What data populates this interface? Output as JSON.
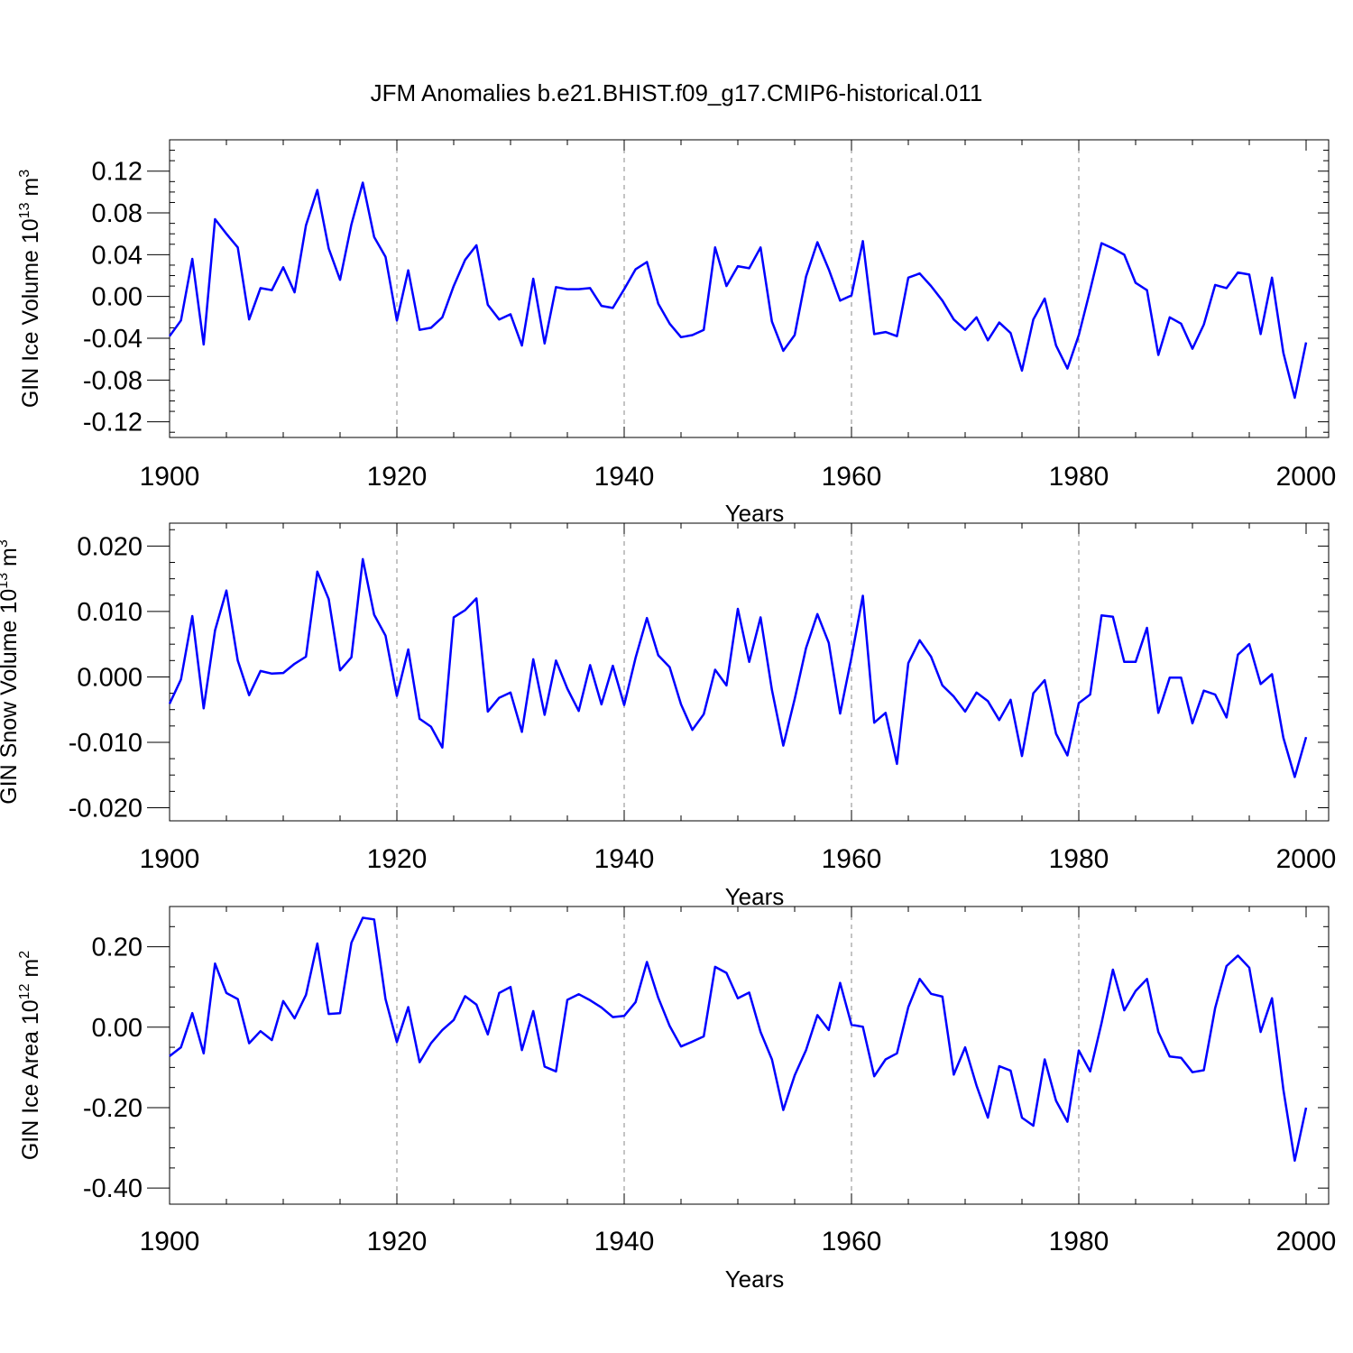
{
  "figure_title": "JFM Anomalies b.e21.BHIST.f09_g17.CMIP6-historical.011",
  "line_color": "#0000ff",
  "chart_data": [
    {
      "type": "line",
      "title": "",
      "xlabel": "Years",
      "ylabel_main": "GIN Ice Volume 10",
      "ylabel_exp": "13",
      "ylabel_unit": "m",
      "ylabel_unit_exp": "3",
      "xlim": [
        1900,
        2000
      ],
      "ylim": [
        -0.135,
        0.15
      ],
      "x_ticks": [
        1900,
        1920,
        1940,
        1960,
        1980,
        2000
      ],
      "y_ticks": [
        -0.12,
        -0.08,
        -0.04,
        0.0,
        0.04,
        0.08,
        0.12
      ],
      "y_tick_labels": [
        "-0.12",
        "-0.08",
        "-0.04",
        "0.00",
        "0.04",
        "0.08",
        "0.12"
      ],
      "x_start": 1900,
      "series": [
        {
          "values": [
            -0.038,
            -0.023,
            0.036,
            -0.046,
            0.074,
            0.06,
            0.047,
            -0.022,
            0.008,
            0.006,
            0.028,
            0.004,
            0.068,
            0.102,
            0.046,
            0.016,
            0.069,
            0.109,
            0.057,
            0.038,
            -0.023,
            0.025,
            -0.032,
            -0.03,
            -0.02,
            0.01,
            0.035,
            0.049,
            -0.008,
            -0.022,
            -0.017,
            -0.047,
            0.017,
            -0.045,
            0.009,
            0.007,
            0.007,
            0.008,
            -0.009,
            -0.011,
            0.007,
            0.026,
            0.033,
            -0.007,
            -0.026,
            -0.039,
            -0.037,
            -0.032,
            0.047,
            0.01,
            0.029,
            0.027,
            0.047,
            -0.024,
            -0.052,
            -0.037,
            0.019,
            0.052,
            0.026,
            -0.004,
            0.001,
            0.053,
            -0.036,
            -0.034,
            -0.038,
            0.018,
            0.022,
            0.01,
            -0.004,
            -0.022,
            -0.032,
            -0.02,
            -0.042,
            -0.025,
            -0.035,
            -0.071,
            -0.022,
            -0.002,
            -0.047,
            -0.069,
            -0.037,
            0.006,
            0.051,
            0.046,
            0.04,
            0.013,
            0.006,
            -0.056,
            -0.02,
            -0.026,
            -0.05,
            -0.027,
            0.011,
            0.008,
            0.023,
            0.021,
            -0.036,
            0.018,
            -0.054,
            -0.097,
            -0.044
          ]
        }
      ]
    },
    {
      "type": "line",
      "title": "",
      "xlabel": "Years",
      "ylabel_main": "GIN Snow Volume 10",
      "ylabel_exp": "13",
      "ylabel_unit": "m",
      "ylabel_unit_exp": "3",
      "xlim": [
        1900,
        2000
      ],
      "ylim": [
        -0.022,
        0.0235
      ],
      "x_ticks": [
        1900,
        1920,
        1940,
        1960,
        1980,
        2000
      ],
      "y_ticks": [
        -0.02,
        -0.01,
        0.0,
        0.01,
        0.02
      ],
      "y_tick_labels": [
        "-0.020",
        "-0.010",
        "0.000",
        "0.010",
        "0.020"
      ],
      "x_start": 1900,
      "series": [
        {
          "values": [
            -0.0041,
            -0.0004,
            0.0093,
            -0.0048,
            0.0071,
            0.0132,
            0.0025,
            -0.0028,
            0.0009,
            0.0005,
            0.0006,
            0.002,
            0.0031,
            0.0161,
            0.0119,
            0.001,
            0.003,
            0.018,
            0.0095,
            0.0063,
            -0.0029,
            0.0042,
            -0.0064,
            -0.0076,
            -0.0108,
            0.0091,
            0.0102,
            0.012,
            -0.0053,
            -0.0032,
            -0.0024,
            -0.0084,
            0.0027,
            -0.0058,
            0.0025,
            -0.0018,
            -0.0052,
            0.0018,
            -0.0042,
            0.0017,
            -0.0043,
            0.0029,
            0.009,
            0.0033,
            0.0015,
            -0.0042,
            -0.0081,
            -0.0057,
            0.0011,
            -0.0013,
            0.0104,
            0.0023,
            0.0091,
            -0.002,
            -0.0105,
            -0.0034,
            0.0044,
            0.0096,
            0.0052,
            -0.0056,
            0.003,
            0.0124,
            -0.007,
            -0.0055,
            -0.0133,
            0.0021,
            0.0056,
            0.0031,
            -0.0013,
            -0.003,
            -0.0053,
            -0.0024,
            -0.0037,
            -0.0066,
            -0.0035,
            -0.0121,
            -0.0025,
            -0.0005,
            -0.0087,
            -0.012,
            -0.004,
            -0.0027,
            0.0094,
            0.0092,
            0.0023,
            0.0023,
            0.0075,
            -0.0055,
            -0.0001,
            -0.0001,
            -0.0071,
            -0.0021,
            -0.0027,
            -0.0062,
            0.0034,
            0.005,
            -0.0011,
            0.0004,
            -0.0093,
            -0.0153,
            -0.0092
          ]
        }
      ]
    },
    {
      "type": "line",
      "title": "",
      "xlabel": "Years",
      "ylabel_main": "GIN Ice Area 10",
      "ylabel_exp": "12",
      "ylabel_unit": "m",
      "ylabel_unit_exp": "2",
      "xlim": [
        1900,
        2000
      ],
      "ylim": [
        -0.44,
        0.3
      ],
      "x_ticks": [
        1900,
        1920,
        1940,
        1960,
        1980,
        2000
      ],
      "y_ticks": [
        -0.4,
        -0.2,
        0.0,
        0.2
      ],
      "y_tick_labels": [
        "-0.40",
        "-0.20",
        "0.00",
        "0.20"
      ],
      "x_start": 1900,
      "series": [
        {
          "values": [
            -0.072,
            -0.05,
            0.035,
            -0.065,
            0.158,
            0.085,
            0.07,
            -0.04,
            -0.01,
            -0.032,
            0.065,
            0.022,
            0.08,
            0.208,
            0.033,
            0.035,
            0.21,
            0.272,
            0.268,
            0.07,
            -0.037,
            0.05,
            -0.087,
            -0.04,
            -0.007,
            0.018,
            0.077,
            0.056,
            -0.018,
            0.085,
            0.1,
            -0.057,
            0.04,
            -0.098,
            -0.11,
            0.068,
            0.082,
            0.067,
            0.049,
            0.025,
            0.028,
            0.062,
            0.162,
            0.073,
            0.003,
            -0.048,
            -0.036,
            -0.023,
            0.15,
            0.135,
            0.072,
            0.086,
            -0.012,
            -0.08,
            -0.206,
            -0.12,
            -0.057,
            0.03,
            -0.007,
            0.11,
            0.006,
            0.001,
            -0.122,
            -0.08,
            -0.065,
            0.05,
            0.12,
            0.083,
            0.076,
            -0.118,
            -0.05,
            -0.145,
            -0.225,
            -0.097,
            -0.108,
            -0.225,
            -0.245,
            -0.08,
            -0.183,
            -0.235,
            -0.058,
            -0.11,
            0.01,
            0.143,
            0.042,
            0.09,
            0.12,
            -0.012,
            -0.073,
            -0.076,
            -0.112,
            -0.107,
            0.048,
            0.152,
            0.178,
            0.148,
            -0.012,
            0.072,
            -0.155,
            -0.332,
            -0.2
          ]
        }
      ]
    }
  ]
}
